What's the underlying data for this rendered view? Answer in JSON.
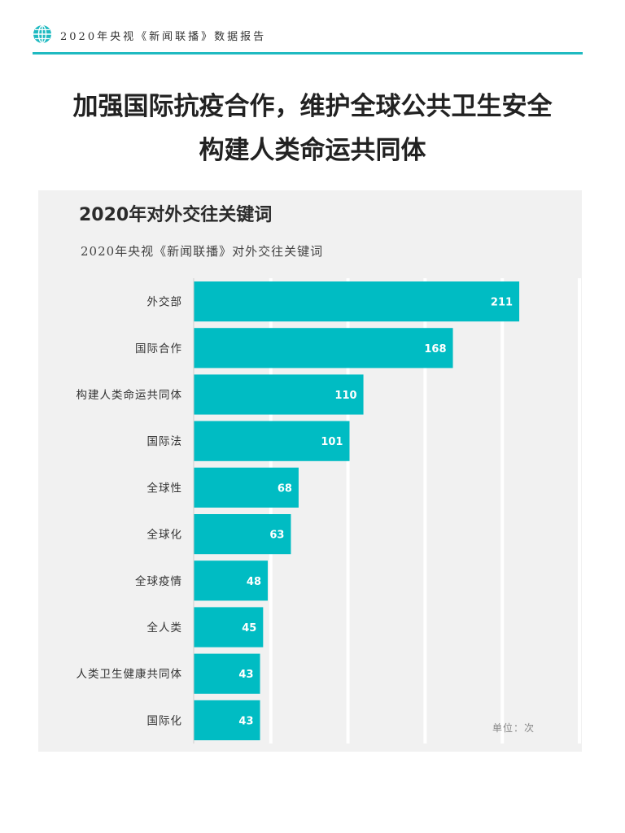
{
  "header": {
    "icon": "globe-icon",
    "report_title": "2020年央视《新闻联播》数据报告",
    "accent_color": "#1fbac1"
  },
  "headline": {
    "line1": "加强国际抗疫合作，维护全球公共卫生安全",
    "line2": "构建人类命运共同体"
  },
  "chart_data": {
    "type": "bar",
    "orientation": "horizontal",
    "title": "2020年对外交往关键词",
    "subtitle": "2020年央视《新闻联播》对外交往关键词",
    "categories": [
      "外交部",
      "国际合作",
      "构建人类命运共同体",
      "国际法",
      "全球性",
      "全球化",
      "全球疫情",
      "全人类",
      "人类卫生健康共同体",
      "国际化"
    ],
    "values": [
      211,
      168,
      110,
      101,
      68,
      63,
      48,
      45,
      43,
      43
    ],
    "value_labels": [
      "211",
      "168",
      "110",
      "101",
      "68",
      "63",
      "48",
      "45",
      "43",
      "43"
    ],
    "unit_label": "单位：次",
    "xlim": [
      0,
      250
    ],
    "grid": true,
    "bar_color": "#00bcc3",
    "background_color": "#f1f1f1",
    "grid_color": "#ffffff"
  }
}
